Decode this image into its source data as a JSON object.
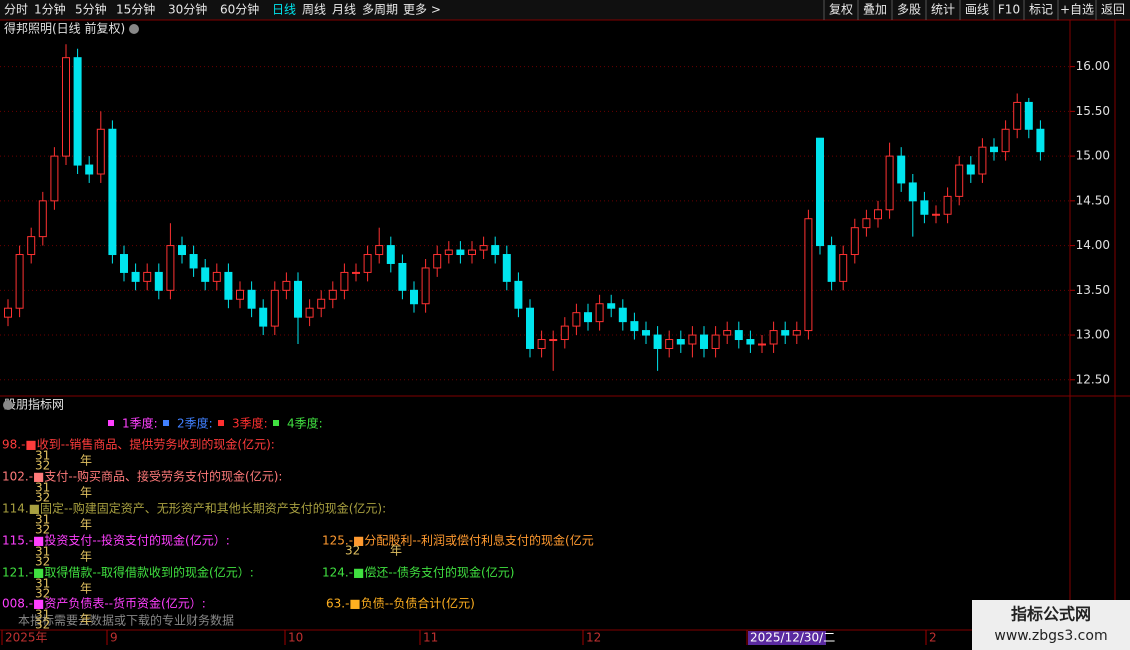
{
  "toolbar": {
    "periods": [
      "分时",
      "1分钟",
      "5分钟",
      "15分钟",
      "30分钟",
      "60分钟",
      "日线",
      "周线",
      "月线",
      "多周期",
      "更多 >"
    ],
    "selected": "日线",
    "buttons": [
      "复权",
      "叠加",
      "多股",
      "统计",
      "画线",
      "F10",
      "标记",
      "+自选",
      "返回"
    ]
  },
  "chart_data": {
    "type": "candlestick",
    "title": "得邦照明(日线 前复权)",
    "up_color": "#ff3232",
    "down_color": "#00e5ee",
    "ylim": [
      12.33,
      16.32
    ],
    "yticks": [
      {
        "value": 12.5,
        "label": "12.50"
      },
      {
        "value": 13,
        "label": "13.00"
      },
      {
        "value": 13.5,
        "label": "13.50"
      },
      {
        "value": 14,
        "label": "14.00"
      },
      {
        "value": 14.5,
        "label": "14.50"
      },
      {
        "value": 15,
        "label": "15.00"
      },
      {
        "value": 15.5,
        "label": "15.50"
      },
      {
        "value": 16,
        "label": "16.00"
      }
    ],
    "grid": true,
    "open": [
      13.2,
      13.3,
      13.9,
      14.1,
      14.5,
      15.0,
      16.1,
      14.9,
      14.8,
      15.3,
      13.9,
      13.7,
      13.6,
      13.7,
      13.5,
      14.0,
      13.9,
      13.75,
      13.6,
      13.7,
      13.4,
      13.5,
      13.3,
      13.1,
      13.5,
      13.6,
      13.2,
      13.3,
      13.4,
      13.5,
      13.7,
      13.7,
      13.9,
      14.0,
      13.8,
      13.5,
      13.35,
      13.75,
      13.9,
      13.95,
      13.9,
      13.95,
      14.0,
      13.9,
      13.6,
      13.3,
      12.85,
      12.95,
      12.95,
      13.1,
      13.25,
      13.15,
      13.35,
      13.3,
      13.15,
      13.05,
      13.0,
      12.85,
      12.95,
      12.9,
      13.0,
      12.85,
      13.0,
      13.05,
      12.95,
      12.9,
      12.9,
      13.05,
      13.0,
      13.05,
      15.2,
      14.0,
      13.6,
      13.9,
      14.2,
      14.3,
      14.4,
      15.0,
      14.7,
      14.5,
      14.35,
      14.35,
      14.55,
      14.9,
      14.8,
      15.1,
      15.05,
      15.3,
      15.6,
      15.3
    ],
    "high": [
      13.4,
      14.0,
      14.2,
      14.6,
      15.1,
      16.25,
      16.2,
      15.0,
      15.5,
      15.4,
      14.0,
      13.8,
      13.8,
      13.8,
      14.25,
      14.1,
      14.0,
      13.85,
      13.8,
      13.8,
      13.6,
      13.6,
      13.4,
      13.6,
      13.7,
      13.7,
      13.4,
      13.5,
      13.6,
      13.8,
      13.8,
      14.0,
      14.2,
      14.1,
      13.9,
      13.6,
      13.85,
      14.0,
      14.05,
      14.05,
      14.05,
      14.1,
      14.1,
      14.0,
      13.7,
      13.4,
      13.05,
      13.05,
      13.2,
      13.35,
      13.35,
      13.45,
      13.45,
      13.4,
      13.25,
      13.15,
      13.1,
      13.05,
      13.05,
      13.1,
      13.1,
      13.1,
      13.15,
      13.15,
      13.05,
      13.0,
      13.15,
      13.15,
      13.15,
      14.4,
      15.2,
      14.1,
      14.0,
      14.3,
      14.4,
      14.5,
      15.15,
      15.1,
      14.8,
      14.6,
      14.45,
      14.65,
      15.0,
      15.0,
      15.2,
      15.2,
      15.4,
      15.7,
      15.65,
      15.4
    ],
    "low": [
      13.1,
      13.2,
      13.8,
      14.0,
      14.4,
      14.9,
      14.8,
      14.7,
      14.7,
      13.8,
      13.6,
      13.5,
      13.5,
      13.4,
      13.4,
      13.8,
      13.65,
      13.5,
      13.5,
      13.3,
      13.3,
      13.2,
      13.0,
      13.0,
      13.4,
      12.9,
      13.1,
      13.2,
      13.3,
      13.4,
      13.6,
      13.6,
      13.8,
      13.7,
      13.4,
      13.25,
      13.25,
      13.65,
      13.8,
      13.8,
      13.8,
      13.85,
      13.8,
      13.5,
      13.2,
      12.75,
      12.75,
      12.6,
      12.85,
      13.0,
      13.05,
      13.05,
      13.2,
      13.05,
      12.95,
      12.9,
      12.6,
      12.75,
      12.8,
      12.75,
      12.75,
      12.75,
      12.9,
      12.85,
      12.8,
      12.8,
      12.8,
      12.9,
      12.9,
      12.95,
      13.9,
      13.5,
      13.5,
      13.8,
      14.1,
      14.2,
      14.3,
      14.6,
      14.1,
      14.25,
      14.25,
      14.25,
      14.45,
      14.7,
      14.7,
      14.95,
      14.95,
      15.2,
      15.2,
      14.95
    ],
    "close": [
      13.3,
      13.9,
      14.1,
      14.5,
      15.0,
      16.1,
      14.9,
      14.8,
      15.3,
      13.9,
      13.7,
      13.6,
      13.7,
      13.5,
      14.0,
      13.9,
      13.75,
      13.6,
      13.7,
      13.4,
      13.5,
      13.3,
      13.1,
      13.5,
      13.6,
      13.2,
      13.3,
      13.4,
      13.5,
      13.7,
      13.7,
      13.9,
      14.0,
      13.8,
      13.5,
      13.35,
      13.75,
      13.9,
      13.95,
      13.9,
      13.95,
      14.0,
      13.9,
      13.6,
      13.3,
      12.85,
      12.95,
      12.95,
      13.1,
      13.25,
      13.15,
      13.35,
      13.3,
      13.15,
      13.05,
      13.0,
      12.85,
      12.95,
      12.9,
      13.0,
      12.85,
      13.0,
      13.05,
      12.95,
      12.9,
      12.9,
      13.05,
      13.0,
      13.05,
      14.3,
      14.0,
      13.6,
      13.9,
      14.2,
      14.3,
      14.4,
      15.0,
      14.7,
      14.5,
      14.35,
      14.35,
      14.55,
      14.9,
      14.8,
      15.1,
      15.05,
      15.3,
      15.6,
      15.3,
      15.05
    ]
  },
  "indicator_panel": {
    "title": "股朋指标网",
    "legend": [
      {
        "name": "1季度:",
        "color": "#ff40ff"
      },
      {
        "name": "2季度:",
        "color": "#4080ff"
      },
      {
        "name": "3季度:",
        "color": "#ff3030"
      },
      {
        "name": "4季度:",
        "color": "#40e040"
      }
    ],
    "lines": [
      {
        "text": "98.-■收到--销售商品、提供劳务收到的现金(亿元):",
        "color": "#ff3c3c"
      },
      {
        "text": "102.-■支付--购买商品、接受劳务支付的现金(亿元):",
        "color": "#ff7a7a"
      },
      {
        "text": "114.■固定--购建固定资产、无形资产和其他长期资产支付的现金(亿元):",
        "color": "#a8a040"
      },
      {
        "text": "115.-■投资支付--投资支付的现金(亿元）:",
        "color": "#ff40ff"
      },
      {
        "text": "125.-■分配股利--利润或偿付利息支付的现金(亿元",
        "color": "#ff9a30"
      },
      {
        "text": "121.-■取得借款--取得借款收到的现金(亿元）:",
        "color": "#40e040"
      },
      {
        "text": "124.-■偿还--债务支付的现金(亿元)",
        "color": "#40e040"
      },
      {
        "text": "008.-■资产负债表--货币资金(亿元）:",
        "color": "#ff40ff"
      },
      {
        "text": "63.-■负债--负债合计(亿元)",
        "color": "#ffb020"
      }
    ],
    "day_31": "31",
    "day_32": "32",
    "year_char": "年",
    "note": "本指标需要云数据或下载的专业财务数据"
  },
  "date_axis": [
    "2025年",
    "9",
    "10",
    "11",
    "12",
    "2025/12/30/二",
    "2"
  ],
  "watermark": {
    "title": "指标公式网",
    "url": "www.zbgs3.com"
  }
}
